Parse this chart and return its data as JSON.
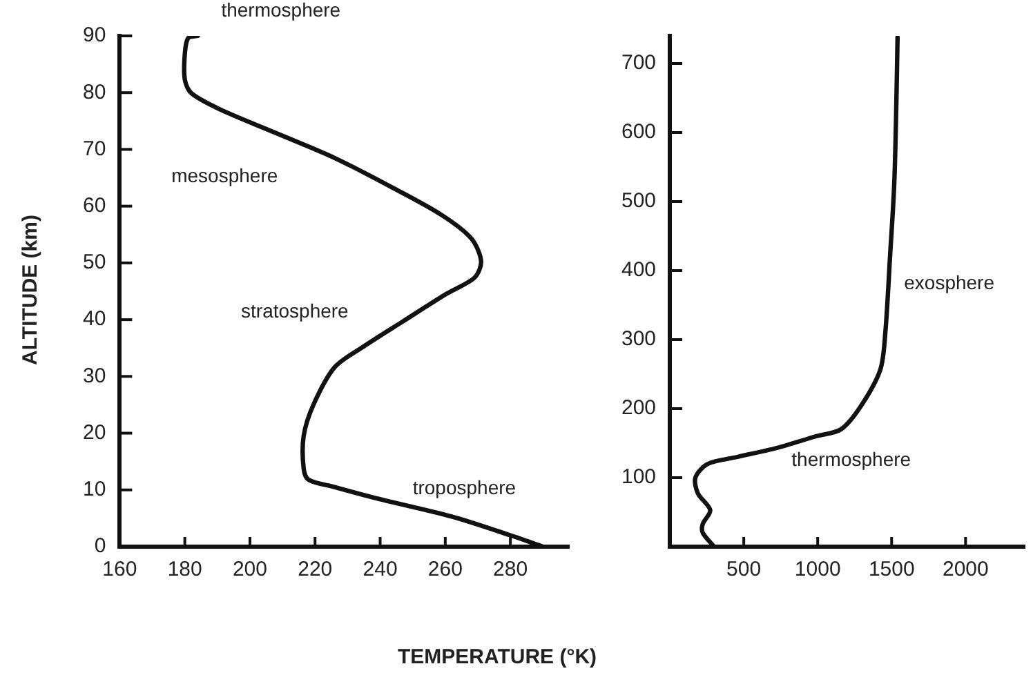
{
  "chart_data": [
    {
      "type": "line",
      "xlabel": "TEMPERATURE (°K)",
      "ylabel": "ALTITUDE (km)",
      "marker": "none",
      "grid": false,
      "legend": false,
      "xlim": [
        160,
        298
      ],
      "xticks": [
        160,
        180,
        200,
        220,
        240,
        260,
        280
      ],
      "ylim": [
        0,
        90
      ],
      "yticks": [
        0,
        10,
        20,
        30,
        40,
        50,
        60,
        70,
        80,
        90
      ],
      "series": [
        {
          "color": "#111111",
          "x": [
            290,
            280,
            262,
            239,
            226,
            218,
            216.5,
            216.5,
            219.5,
            226,
            235,
            247,
            260.5,
            269,
            271,
            268,
            259,
            244,
            226,
            207.5,
            191,
            182,
            180,
            180,
            181,
            184
          ],
          "values": [
            0,
            2,
            5.3,
            8.5,
            10.5,
            11.8,
            13.8,
            19.5,
            25,
            31.6,
            35.3,
            39.7,
            44.6,
            47.4,
            50.3,
            54.3,
            58.4,
            63.2,
            68.5,
            73,
            77,
            79.9,
            82.3,
            86.8,
            89.6,
            90
          ]
        }
      ],
      "annotations": [
        "thermosphere",
        "mesosphere",
        "stratosphere",
        {
          "text": "troposphere",
          "x": 250,
          "y": 8.5
        }
      ]
    },
    {
      "type": "line",
      "marker": "none",
      "grid": false,
      "legend": false,
      "xlim": [
        0,
        2400
      ],
      "xticks": [
        500,
        1000,
        1500,
        2000
      ],
      "ylim": [
        0,
        740
      ],
      "yticks": [
        100,
        200,
        300,
        400,
        500,
        600,
        700
      ],
      "series": [
        {
          "color": "#111111",
          "x": [
            300,
            223,
            223,
            273,
            190,
            173,
            257,
            457,
            723,
            990,
            1157,
            1290,
            1423,
            1457,
            1490,
            1517,
            1530,
            1540
          ],
          "values": [
            0,
            20,
            33,
            53,
            77,
            100,
            120,
            130,
            143,
            160,
            170,
            203,
            256,
            309,
            423,
            522,
            622,
            738
          ]
        }
      ],
      "annotations": [
        "thermosphere",
        "exosphere"
      ]
    }
  ]
}
